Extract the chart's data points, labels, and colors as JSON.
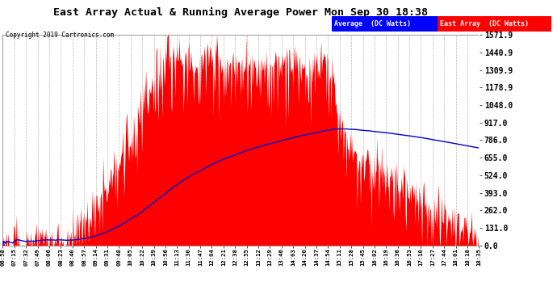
{
  "title": "East Array Actual & Running Average Power Mon Sep 30 18:38",
  "copyright": "Copyright 2019 Cartronics.com",
  "legend_avg": "Average  (DC Watts)",
  "legend_east": "East Array  (DC Watts)",
  "yticks": [
    0.0,
    131.0,
    262.0,
    393.0,
    524.0,
    655.0,
    786.0,
    917.0,
    1048.0,
    1178.9,
    1309.9,
    1440.9,
    1571.9
  ],
  "ymax": 1571.9,
  "ymin": 0.0,
  "bg_color": "#ffffff",
  "grid_color": "#aaaaaa",
  "bar_color": "#ff0000",
  "avg_line_color": "#0000cc",
  "fig_bg": "#ffffff",
  "xtick_labels": [
    "06:58",
    "07:15",
    "07:32",
    "07:49",
    "08:06",
    "08:23",
    "08:40",
    "08:57",
    "09:14",
    "09:31",
    "09:48",
    "10:05",
    "10:22",
    "10:39",
    "10:56",
    "11:13",
    "11:30",
    "11:47",
    "12:04",
    "12:21",
    "12:38",
    "12:55",
    "13:12",
    "13:29",
    "13:46",
    "14:03",
    "14:20",
    "14:37",
    "14:54",
    "15:11",
    "15:28",
    "15:45",
    "16:02",
    "16:19",
    "16:36",
    "16:53",
    "17:10",
    "17:27",
    "17:44",
    "18:01",
    "18:18",
    "18:35"
  ]
}
